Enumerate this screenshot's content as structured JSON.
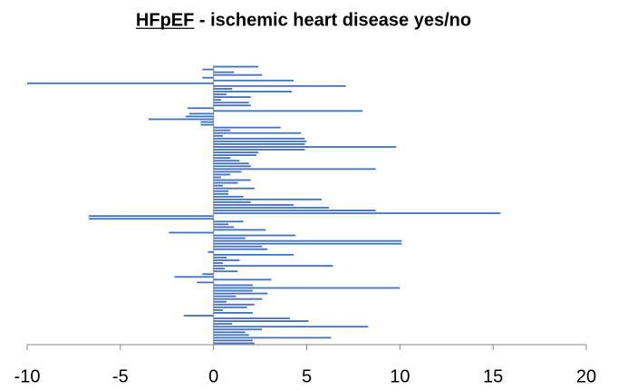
{
  "chart_data": {
    "type": "barh",
    "title": "HFpEF - ischemic heart disease yes/no",
    "title_underlined_word": "HFpEF",
    "color": "#4472c4",
    "values": [
      2.4,
      -0.6,
      1.1,
      2.6,
      -0.6,
      4.3,
      -10,
      7.1,
      1.0,
      4.2,
      0.7,
      2.0,
      0.4,
      1.9,
      2.0,
      -1.4,
      8.0,
      -1.3,
      -1.5,
      -3.5,
      -0.7,
      -0.7,
      3.6,
      0.9,
      4.7,
      0.5,
      4.9,
      5.0,
      4.9,
      9.8,
      4.9,
      2.4,
      2.3,
      0.9,
      1.4,
      1.9,
      2.0,
      8.7,
      1.5,
      0.9,
      0.4,
      2.0,
      1.3,
      0.5,
      2.2,
      0.8,
      0.8,
      1.6,
      5.8,
      2.0,
      4.3,
      6.2,
      8.7,
      15.4,
      -6.7,
      -6.7,
      1.6,
      0.8,
      1.1,
      2.8,
      -2.4,
      4.4,
      1.7,
      10.1,
      10.1,
      2.6,
      2.9,
      -0.3,
      4.3,
      0.7,
      1.4,
      0.5,
      6.4,
      0.6,
      1.3,
      -0.6,
      -2.1,
      3.1,
      -0.9,
      2.1,
      10.0,
      2.1,
      2.9,
      1.2,
      2.6,
      0.7,
      2.2,
      1.8,
      0.5,
      2.1,
      -1.6,
      4.1,
      5.1,
      1.0,
      8.3,
      2.6,
      1.7,
      1.9,
      6.3,
      2.1,
      2.2
    ],
    "xlim": [
      -10,
      20
    ],
    "xticks": [
      -10,
      -5,
      0,
      5,
      10,
      15,
      20
    ]
  }
}
